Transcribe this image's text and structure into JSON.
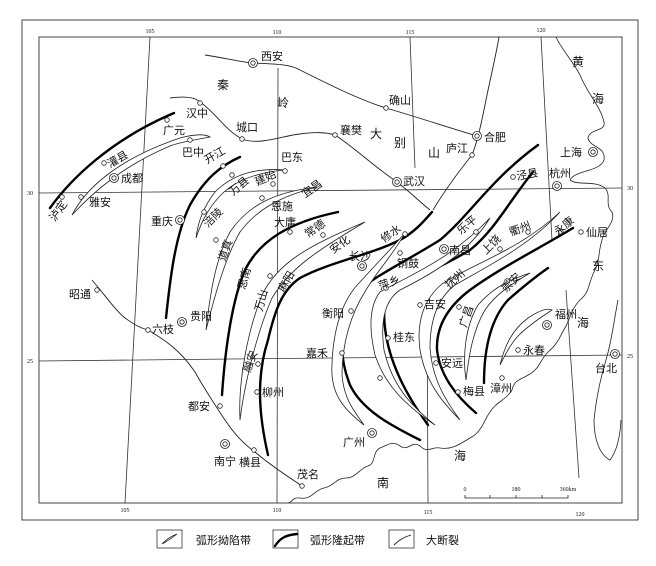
{
  "map": {
    "ticks": {
      "lon105": "105",
      "lon110": "110",
      "lon115": "115",
      "lon120": "120",
      "lat30": "30",
      "lat25": "25"
    },
    "regions": {
      "qin": "秦",
      "ling": "岭",
      "da": "大",
      "bie": "别",
      "shan": "山",
      "huang": "黄",
      "hai1": "海",
      "dong": "东",
      "hai2": "海",
      "nan": "南",
      "hai3": "海"
    },
    "places": {
      "xian": "西安",
      "hanzhong": "汉中",
      "chengkou": "城口",
      "guangyuan": "广元",
      "bazhong": "巴中",
      "kaijiang": "开江",
      "badong": "巴东",
      "guanxian": "灌县",
      "chengdu": "成都",
      "luding": "泸定",
      "yaan": "雅安",
      "chongqing": "重庆",
      "wanxian": "万县",
      "jianshi": "建始",
      "fuling": "涪陵",
      "enshi": "恩施",
      "yichang": "宜昌",
      "dayong": "大庸",
      "changde": "常德",
      "daozhen": "道真",
      "sinan": "思南",
      "wanshan": "万山",
      "mayang": "麻阳",
      "anhua": "安化",
      "changsha": "长沙",
      "xiushui": "修水",
      "tonggu": "铜鼓",
      "pingxiang": "萍乡",
      "nanchang": "南昌",
      "leping": "乐平",
      "shangrao": "上饶",
      "quzhou": "衢州",
      "yongkang": "永康",
      "xianju": "仙居",
      "jingxian": "泾县",
      "hangzhou": "杭州",
      "shanghai": "上海",
      "hefei": "合肥",
      "lujiang": "庐江",
      "xiangfan": "襄樊",
      "queshan": "确山",
      "wuhan": "武汉",
      "fuzhou": "福州",
      "yongchun": "永春",
      "taibei": "台北",
      "zhangzhou": "漳州",
      "meixian": "梅县",
      "anyuan": "安远",
      "guangchang": "广昌",
      "chongan": "崇安",
      "fuzhou_jx": "抚州",
      "jian": "吉安",
      "guidong": "桂东",
      "hengyang": "衡阳",
      "jiahe": "嘉禾",
      "guiyang": "贵阳",
      "liuzhi": "六枝",
      "zhaotong": "昭通",
      "rongan": "融安",
      "liuzhou": "柳州",
      "duan": "都安",
      "nanning": "南宁",
      "hengxian": "横县",
      "maoming": "茂名",
      "guangzhou": "广州"
    },
    "scale_bar": {
      "zero": "0",
      "mid": "180",
      "end": "360km"
    }
  },
  "legend": {
    "depression": "弧形拗陷带",
    "uplift": "弧形隆起带",
    "fault": "大断裂"
  }
}
